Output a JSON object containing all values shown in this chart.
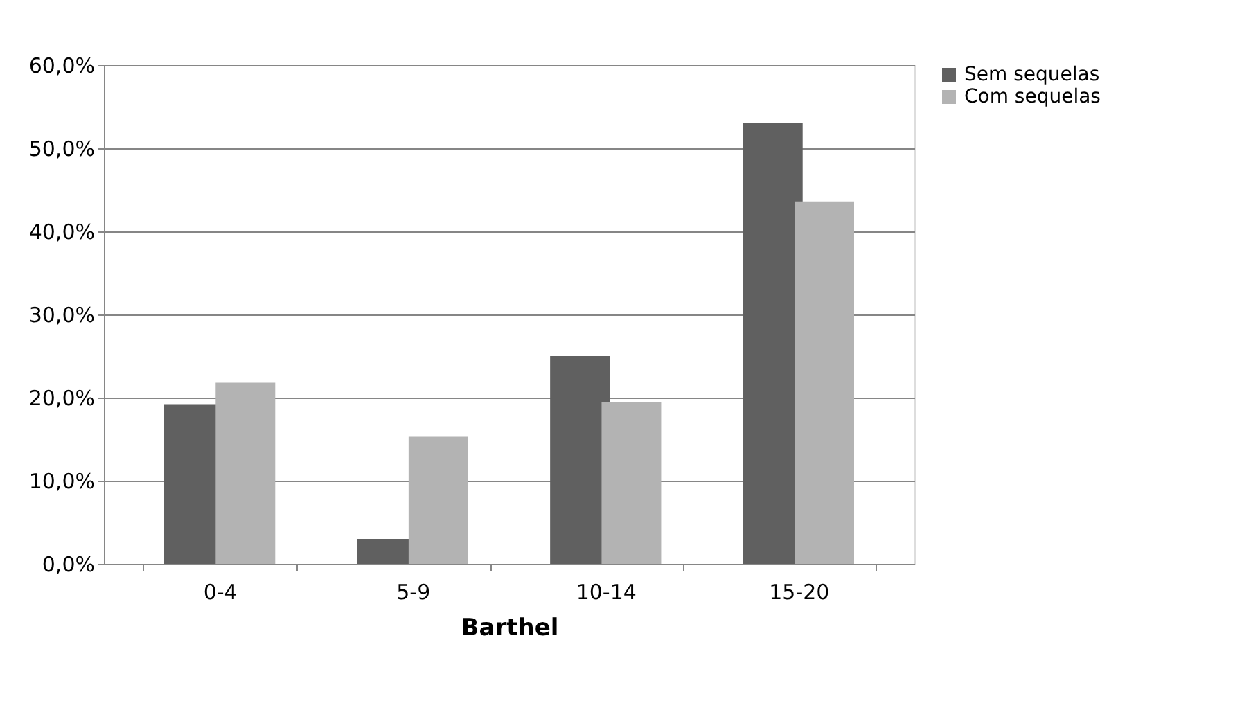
{
  "chart_data": {
    "type": "bar",
    "xlabel": "Barthel",
    "categories": [
      "0-4",
      "5-9",
      "10-14",
      "15-20"
    ],
    "series": [
      {
        "name": "Sem sequelas",
        "color": "#606060",
        "values": [
          19.2,
          3.0,
          25.0,
          53.0
        ]
      },
      {
        "name": "Com sequelas",
        "color": "#b3b3b3",
        "values": [
          21.8,
          15.3,
          19.5,
          43.6
        ]
      }
    ],
    "ylim": [
      0,
      60
    ],
    "yticks": [
      {
        "value": 0,
        "label": "0,0%"
      },
      {
        "value": 10,
        "label": "10,0%"
      },
      {
        "value": 20,
        "label": "20,0%"
      },
      {
        "value": 30,
        "label": "30,0%"
      },
      {
        "value": 40,
        "label": "40,0%"
      },
      {
        "value": 50,
        "label": "50,0%"
      },
      {
        "value": 60,
        "label": "60,0%"
      }
    ],
    "grid": "y",
    "legend": "right"
  }
}
